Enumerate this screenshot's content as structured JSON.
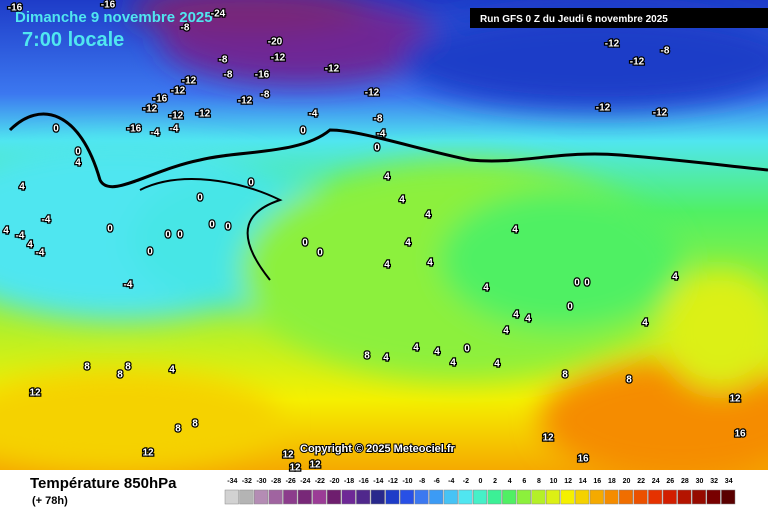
{
  "header": {
    "date": "Dimanche 9 novembre 2025",
    "time": "7:00 locale",
    "run": "Run GFS 0 Z du Jeudi 6 novembre 2025"
  },
  "copyright": "Copyright © 2025 Meteociel.fr",
  "footer": {
    "title": "Température 850hPa",
    "lead": "(+ 78h)"
  },
  "legend": {
    "labels": [
      -34,
      -32,
      -30,
      -28,
      -26,
      -24,
      -22,
      -20,
      -18,
      -16,
      -14,
      -12,
      -10,
      -8,
      -6,
      -4,
      -2,
      0,
      2,
      4,
      6,
      8,
      10,
      12,
      14,
      16,
      18,
      20,
      22,
      24,
      26,
      28,
      30,
      32,
      34
    ],
    "colors": [
      "#d2d2d2",
      "#b4b4b4",
      "#b48cb4",
      "#a064a0",
      "#8c3c8c",
      "#782878",
      "#9b3c96",
      "#6e1e6e",
      "#6e2896",
      "#50288c",
      "#28288c",
      "#1e3cc8",
      "#2850e6",
      "#3c78f0",
      "#3c9bf5",
      "#46c3f5",
      "#50e6f0",
      "#46f0c8",
      "#3cf096",
      "#50f064",
      "#8cf03c",
      "#b4f028",
      "#dcf014",
      "#f5f000",
      "#f5d200",
      "#f5aa00",
      "#f58c00",
      "#f06e00",
      "#eb5000",
      "#e63200",
      "#d21e00",
      "#b41400",
      "#960a00",
      "#780000",
      "#5a0000"
    ]
  },
  "map_labels": [
    -16,
    -16,
    -24,
    -8,
    -20,
    -8,
    -12,
    -8,
    -16,
    -12,
    -8,
    -12,
    -12,
    -12,
    -16,
    -12,
    -12,
    -16,
    -4,
    -4,
    -12,
    -12,
    -8,
    -4,
    0,
    -4,
    0,
    0,
    0,
    4,
    4,
    -4,
    4,
    -4,
    4,
    -4,
    -12,
    -8,
    -12,
    -12,
    -12,
    0,
    0,
    0,
    0,
    0,
    0,
    0,
    0,
    0,
    0,
    -4,
    4,
    4,
    4,
    4,
    4,
    4,
    4,
    4,
    0,
    0,
    0,
    4,
    4,
    4,
    4,
    4,
    8,
    4,
    4,
    4,
    0,
    4,
    4,
    8,
    8,
    8,
    4,
    12,
    8,
    8,
    12,
    12,
    12,
    12,
    12,
    16,
    16,
    12,
    8,
    8
  ]
}
